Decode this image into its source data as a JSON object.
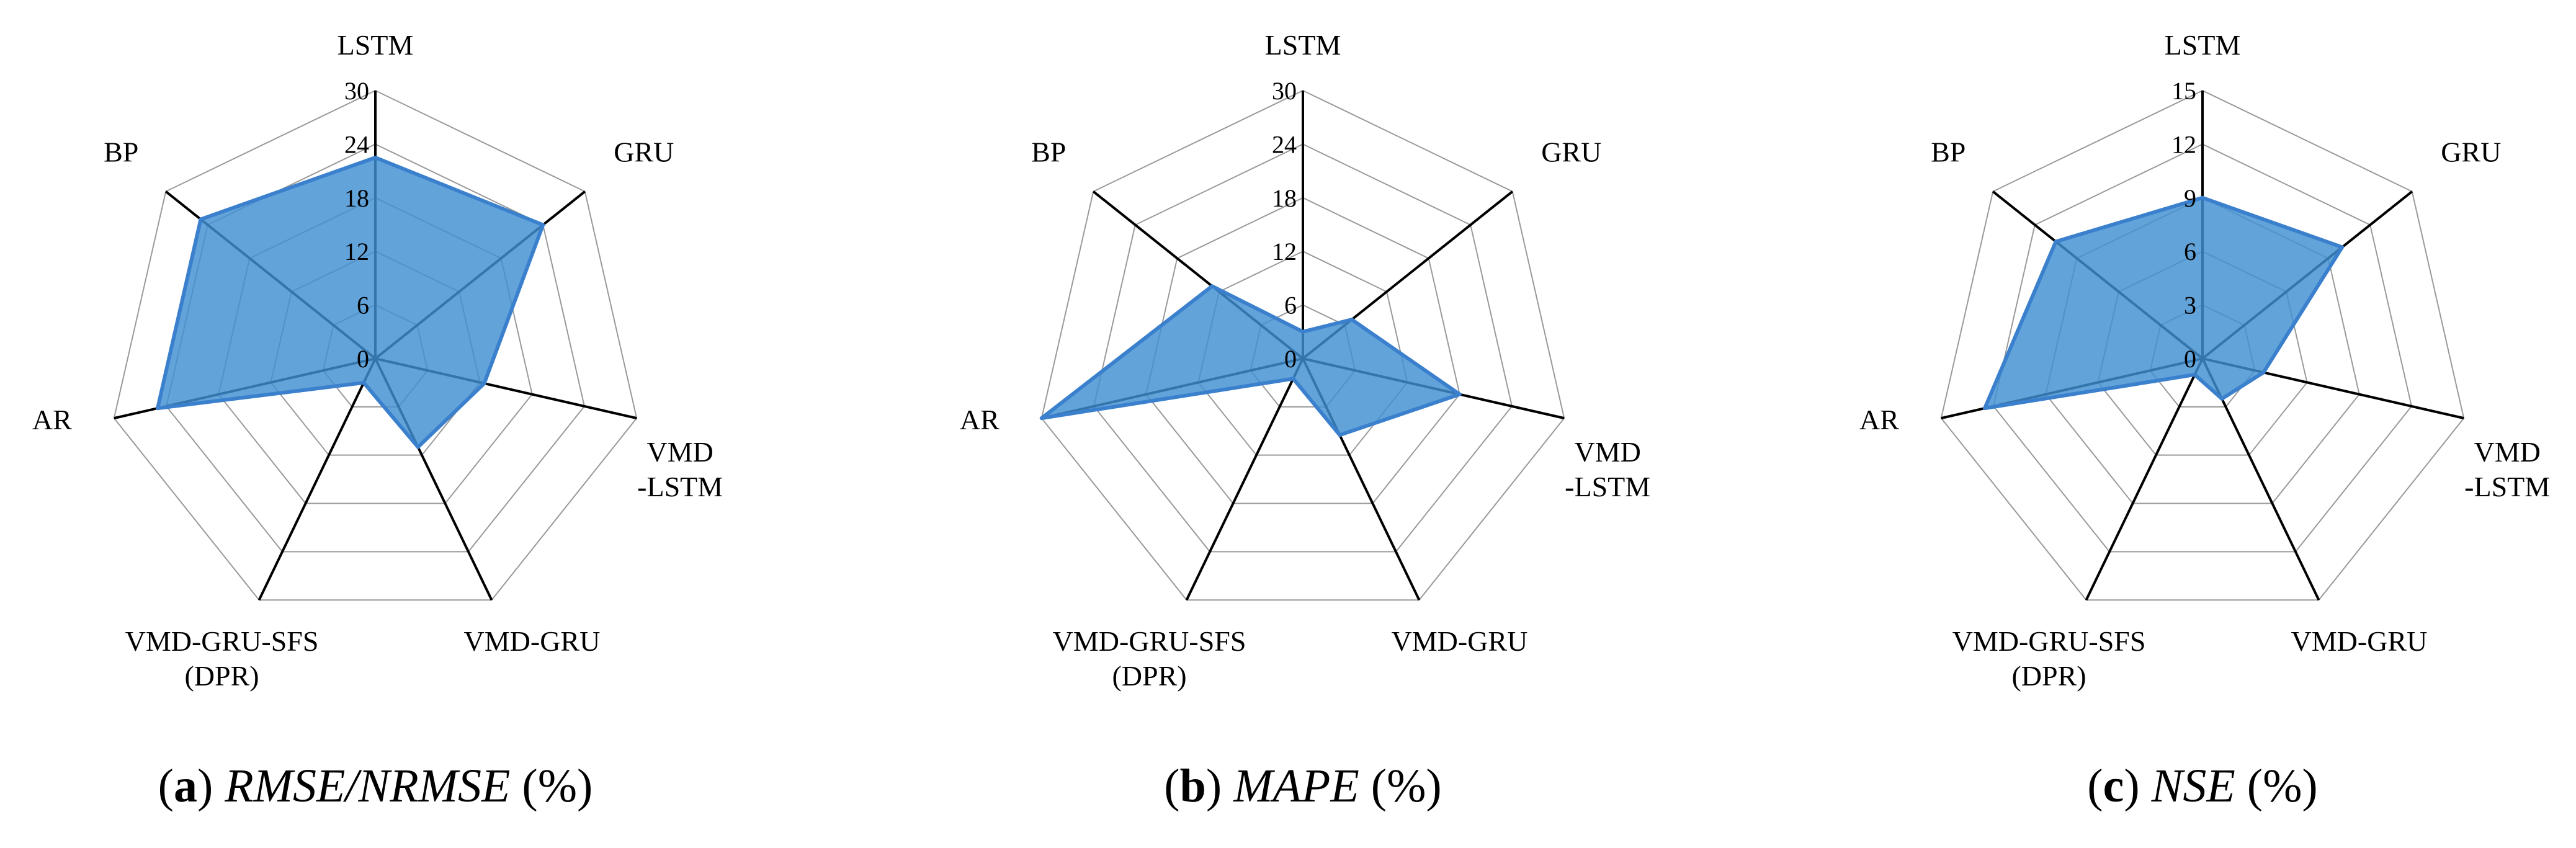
{
  "chart_data": [
    {
      "type": "radar",
      "axes": [
        "LSTM",
        "GRU",
        "VMD\n-LSTM",
        "VMD-GRU",
        "VMD-GRU-SFS\n(DPR)",
        "AR",
        "BP"
      ],
      "ticks": [
        "0",
        "6",
        "12",
        "18",
        "24",
        "30"
      ],
      "rmax": 30,
      "series": [
        {
          "values": [
            22.5,
            24.0,
            12.5,
            11.0,
            3.0,
            25.0,
            25.0
          ]
        }
      ],
      "caption": {
        "letter": "a",
        "metric": "RMSE/NRMSE",
        "unit": "(%)"
      }
    },
    {
      "type": "radar",
      "axes": [
        "LSTM",
        "GRU",
        "VMD\n-LSTM",
        "VMD-GRU",
        "VMD-GRU-SFS\n(DPR)",
        "AR",
        "BP"
      ],
      "ticks": [
        "0",
        "6",
        "12",
        "18",
        "24",
        "30"
      ],
      "rmax": 30,
      "series": [
        {
          "values": [
            3.0,
            7.0,
            18.0,
            9.5,
            2.5,
            30.0,
            13.0
          ]
        }
      ],
      "caption": {
        "letter": "b",
        "metric": "MAPE",
        "unit": "(%)"
      }
    },
    {
      "type": "radar",
      "axes": [
        "LSTM",
        "GRU",
        "VMD\n-LSTM",
        "VMD-GRU",
        "VMD-GRU-SFS\n(DPR)",
        "AR",
        "BP"
      ],
      "ticks": [
        "0",
        "3",
        "6",
        "9",
        "12",
        "15"
      ],
      "rmax": 15,
      "series": [
        {
          "values": [
            9.0,
            10.0,
            3.5,
            2.5,
            1.0,
            12.5,
            10.5
          ]
        }
      ],
      "caption": {
        "letter": "c",
        "metric": "NSE",
        "unit": "(%)"
      }
    }
  ],
  "colors": {
    "fill": "#3f8fd2",
    "stroke": "#3a80cd",
    "grid": "#999999",
    "axis": "#000000"
  }
}
